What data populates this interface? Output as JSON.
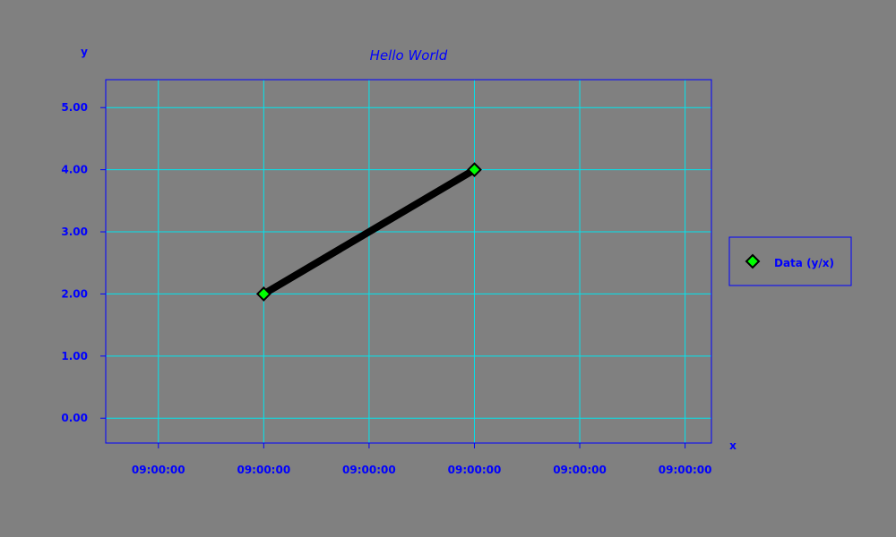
{
  "chart_data": {
    "type": "line",
    "title": "Hello World",
    "xlabel": "x",
    "ylabel": "y",
    "x_tick_labels": [
      "09:00:00",
      "09:00:00",
      "09:00:00",
      "09:00:00",
      "09:00:00",
      "09:00:00"
    ],
    "y_ticks": [
      0,
      1,
      2,
      3,
      4,
      5
    ],
    "y_tick_labels": [
      "0.00",
      "1.00",
      "2.00",
      "3.00",
      "4.00",
      "5.00"
    ],
    "xlim": [
      -0.5,
      5.25
    ],
    "ylim": [
      -0.4,
      5.45
    ],
    "grid": true,
    "legend_position": "right",
    "series": [
      {
        "name": "Data (y/x)",
        "marker": "diamond",
        "points": [
          {
            "x": 1,
            "y": 2
          },
          {
            "x": 3,
            "y": 4
          }
        ]
      }
    ]
  },
  "colors": {
    "background": "#808080",
    "plot_background": "#808080",
    "grid": "#00e5ee",
    "axis_text": "#0000ff",
    "plot_border": "#0000ff",
    "line": "#000000",
    "marker_fill": "#00ff00",
    "marker_stroke": "#000000",
    "legend_border": "#0000ff",
    "title_text": "#0000ff"
  }
}
